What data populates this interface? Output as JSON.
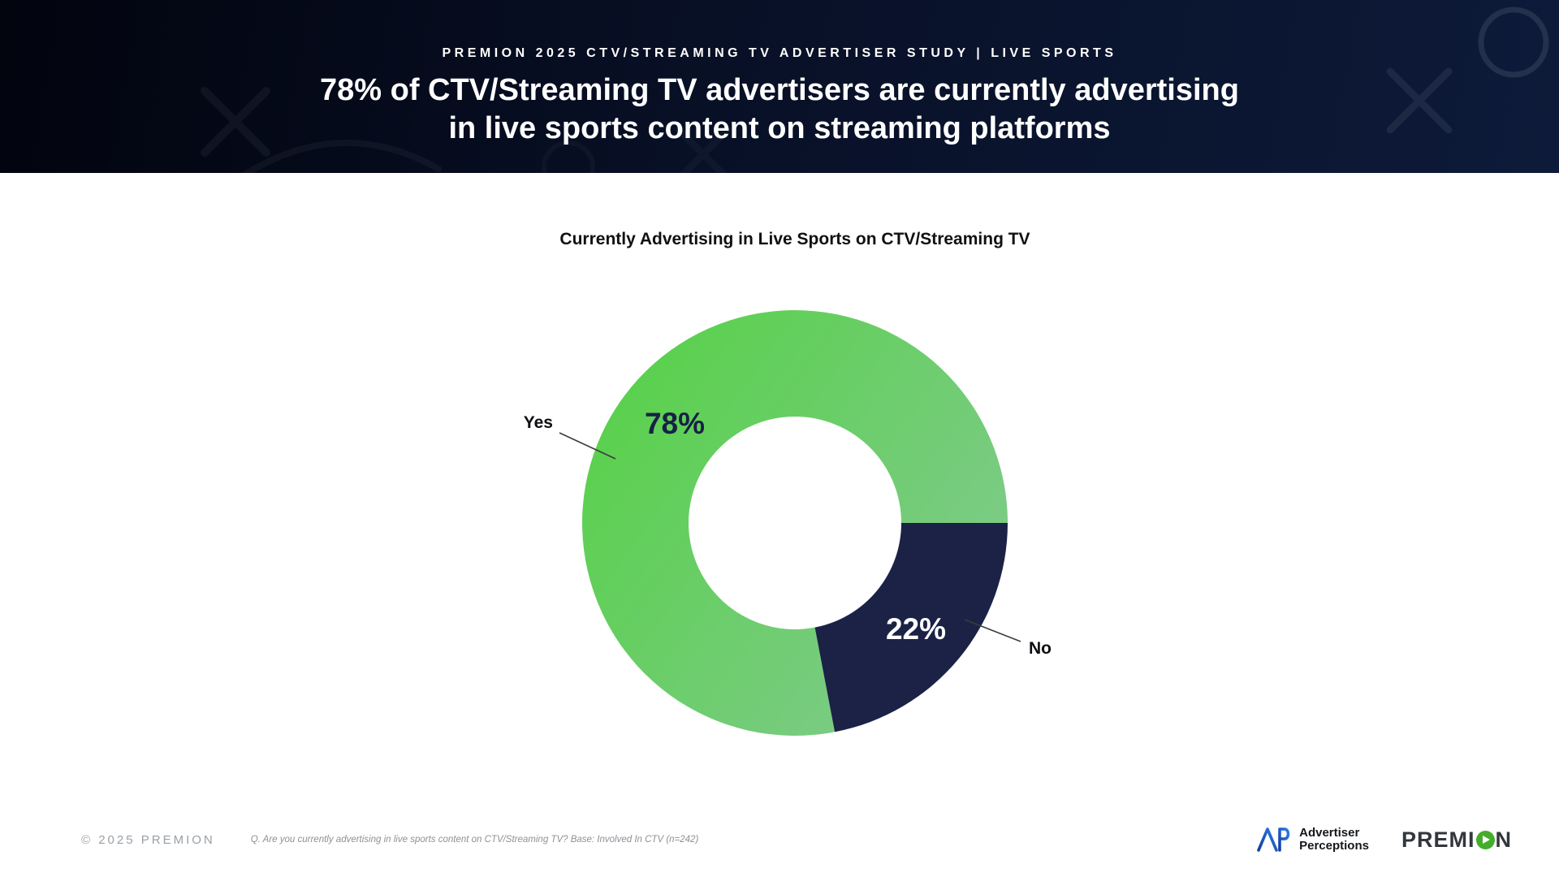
{
  "header": {
    "eyebrow": "PREMION 2025 CTV/STREAMING TV ADVERTISER STUDY | LIVE SPORTS",
    "title_line1": "78% of CTV/Streaming TV advertisers are currently advertising",
    "title_line2": "in live sports content on streaming platforms"
  },
  "chart_data": {
    "type": "pie",
    "subtype": "donut",
    "title": "Currently Advertising in Live Sports on CTV/Streaming TV",
    "categories": [
      "Yes",
      "No"
    ],
    "values": [
      78,
      22
    ],
    "value_labels": [
      "78%",
      "22%"
    ],
    "colors": {
      "yes_gradient": [
        "#57d148",
        "#82ca90"
      ],
      "no": "#1b2245",
      "yes_value_text": "#172145",
      "no_value_text": "#ffffff"
    },
    "start_angle_deg": 90,
    "direction": "clockwise",
    "inner_radius_ratio": 0.5,
    "legend_position": "callout-labels"
  },
  "footer": {
    "copyright": "© 2025 PREMION",
    "source_note": "Q. Are you currently advertising in live sports content on CTV/Streaming TV?  Base: Involved In CTV (n=242)",
    "ap_logo_line1": "Advertiser",
    "ap_logo_line2": "Perceptions",
    "premion_logo_pre": "PREMI",
    "premion_logo_post": "N",
    "premion_o_color": "#45ad2b"
  }
}
